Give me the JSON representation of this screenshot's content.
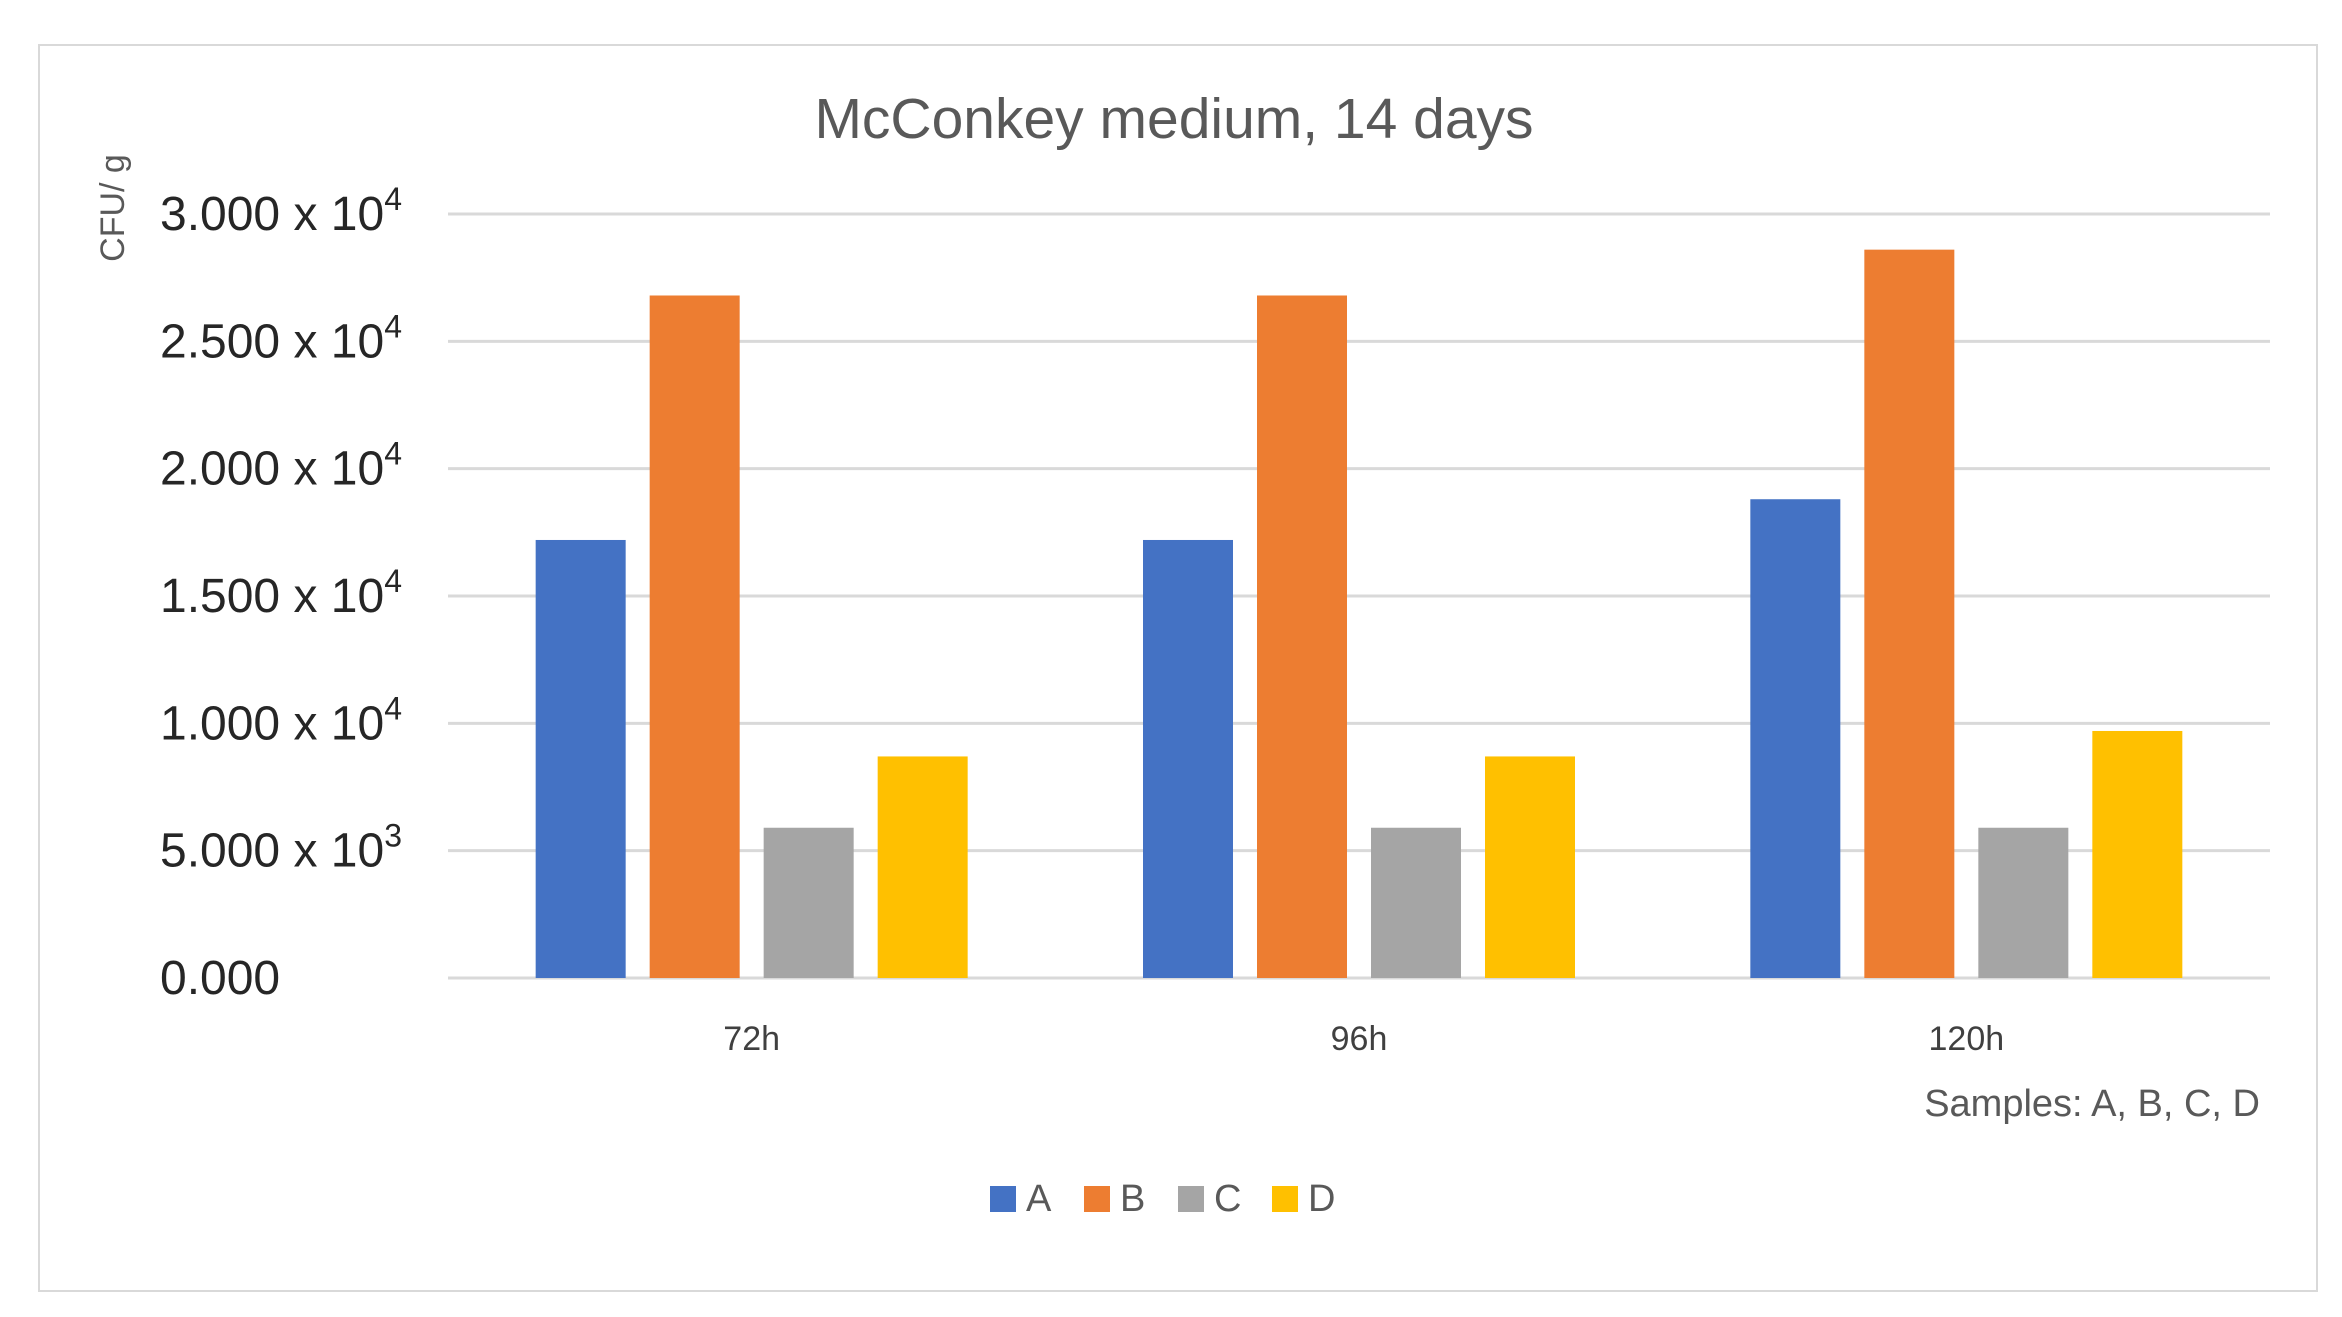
{
  "chart_data": {
    "type": "bar",
    "title": "McConkey medium, 14 days",
    "ylabel": "CFU/ g",
    "xlabel": "",
    "note": "Samples: A, B, C, D",
    "categories": [
      "72h",
      "96h",
      "120h"
    ],
    "series": [
      {
        "name": "A",
        "color": "#4472C4",
        "values": [
          17200,
          17200,
          18800
        ]
      },
      {
        "name": "B",
        "color": "#ED7D31",
        "values": [
          26800,
          26800,
          28600
        ]
      },
      {
        "name": "C",
        "color": "#A5A5A5",
        "values": [
          5900,
          5900,
          5900
        ]
      },
      {
        "name": "D",
        "color": "#FFC000",
        "values": [
          8700,
          8700,
          9700
        ]
      }
    ],
    "yticks": [
      {
        "value": 0,
        "mantissa": "0.000",
        "exp": ""
      },
      {
        "value": 5000,
        "mantissa": "5.000 x 10",
        "exp": "3"
      },
      {
        "value": 10000,
        "mantissa": "1.000 x 10",
        "exp": "4"
      },
      {
        "value": 15000,
        "mantissa": "1.500 x 10",
        "exp": "4"
      },
      {
        "value": 20000,
        "mantissa": "2.000 x 10",
        "exp": "4"
      },
      {
        "value": 25000,
        "mantissa": "2.500 x 10",
        "exp": "4"
      },
      {
        "value": 30000,
        "mantissa": "3.000 x 10",
        "exp": "4"
      }
    ],
    "ylim": [
      0,
      30000
    ],
    "grid": true,
    "legend_position": "bottom-center",
    "gridline_color": "#d9d9d9"
  }
}
